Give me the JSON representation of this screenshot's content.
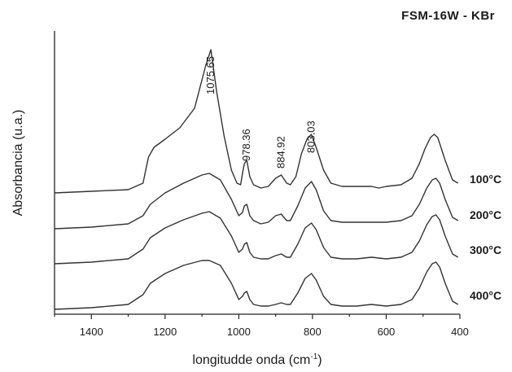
{
  "chart_data": {
    "type": "line",
    "title": "FSM-16W - KBr",
    "xlabel": "longitudde onda (cm",
    "xlabel_sup": "-1",
    "xlabel_close": ")",
    "ylabel": "Absorbancia (u.a.)",
    "xlim": [
      1500,
      400
    ],
    "x_reversed": true,
    "x_ticks": [
      1400,
      1200,
      1000,
      800,
      600,
      400
    ],
    "y_ticks": [],
    "stacked_offsets": true,
    "peak_labels": [
      "1075.65",
      "978.36",
      "884.92",
      "803.03"
    ],
    "peak_positions": [
      1075.65,
      978.36,
      884.92,
      803.03
    ],
    "series": [
      {
        "name": "100°C",
        "x": [
          1500,
          1400,
          1300,
          1260,
          1245,
          1230,
          1200,
          1160,
          1120,
          1090,
          1075.65,
          1060,
          1040,
          1020,
          1005,
          995,
          990,
          985,
          978.36,
          970,
          960,
          940,
          920,
          900,
          884.92,
          870,
          860,
          845,
          830,
          815,
          803.03,
          790,
          770,
          750,
          720,
          680,
          640,
          620,
          600,
          560,
          530,
          510,
          495,
          480,
          470,
          460,
          440,
          420,
          405
        ],
        "y": [
          0.0,
          0.01,
          0.02,
          0.06,
          0.22,
          0.28,
          0.33,
          0.4,
          0.52,
          0.78,
          0.88,
          0.62,
          0.35,
          0.14,
          0.06,
          0.05,
          0.12,
          0.18,
          0.2,
          0.1,
          0.05,
          0.03,
          0.04,
          0.09,
          0.11,
          0.06,
          0.05,
          0.1,
          0.24,
          0.33,
          0.36,
          0.28,
          0.14,
          0.06,
          0.04,
          0.04,
          0.04,
          0.03,
          0.04,
          0.05,
          0.09,
          0.18,
          0.27,
          0.34,
          0.36,
          0.34,
          0.2,
          0.08,
          0.06
        ]
      },
      {
        "name": "200°C",
        "x": [
          1500,
          1400,
          1300,
          1260,
          1240,
          1200,
          1150,
          1100,
          1080,
          1050,
          1020,
          1000,
          990,
          985,
          978.36,
          970,
          960,
          940,
          920,
          900,
          885,
          870,
          860,
          840,
          820,
          803,
          790,
          770,
          750,
          720,
          680,
          640,
          600,
          560,
          530,
          510,
          490,
          475,
          465,
          455,
          440,
          420,
          405
        ],
        "y": [
          0.0,
          0.01,
          0.03,
          0.08,
          0.15,
          0.22,
          0.28,
          0.33,
          0.34,
          0.3,
          0.18,
          0.08,
          0.1,
          0.14,
          0.15,
          0.08,
          0.05,
          0.03,
          0.04,
          0.08,
          0.09,
          0.05,
          0.05,
          0.14,
          0.25,
          0.29,
          0.24,
          0.11,
          0.05,
          0.04,
          0.04,
          0.04,
          0.04,
          0.05,
          0.08,
          0.15,
          0.25,
          0.3,
          0.31,
          0.28,
          0.18,
          0.07,
          0.05
        ]
      },
      {
        "name": "300°C",
        "x": [
          1500,
          1400,
          1300,
          1260,
          1240,
          1200,
          1150,
          1100,
          1080,
          1050,
          1020,
          1000,
          990,
          985,
          978.36,
          970,
          960,
          940,
          920,
          900,
          885,
          870,
          860,
          840,
          820,
          803,
          790,
          770,
          750,
          720,
          680,
          640,
          600,
          560,
          530,
          510,
          490,
          475,
          465,
          455,
          440,
          420,
          405
        ],
        "y": [
          0.0,
          0.01,
          0.03,
          0.09,
          0.16,
          0.22,
          0.27,
          0.31,
          0.32,
          0.28,
          0.17,
          0.07,
          0.09,
          0.12,
          0.13,
          0.07,
          0.04,
          0.03,
          0.03,
          0.05,
          0.06,
          0.04,
          0.04,
          0.12,
          0.22,
          0.25,
          0.21,
          0.1,
          0.04,
          0.03,
          0.03,
          0.04,
          0.03,
          0.04,
          0.07,
          0.14,
          0.24,
          0.29,
          0.3,
          0.27,
          0.17,
          0.06,
          0.04
        ]
      },
      {
        "name": "400°C",
        "x": [
          1500,
          1400,
          1300,
          1260,
          1240,
          1200,
          1150,
          1100,
          1080,
          1050,
          1020,
          1000,
          990,
          985,
          978.36,
          970,
          960,
          940,
          920,
          900,
          885,
          870,
          860,
          840,
          820,
          803,
          790,
          770,
          750,
          720,
          680,
          640,
          600,
          560,
          530,
          510,
          490,
          475,
          465,
          455,
          440,
          420,
          405
        ],
        "y": [
          0.0,
          0.01,
          0.03,
          0.09,
          0.16,
          0.22,
          0.27,
          0.3,
          0.3,
          0.27,
          0.16,
          0.06,
          0.08,
          0.1,
          0.11,
          0.06,
          0.03,
          0.02,
          0.02,
          0.03,
          0.04,
          0.03,
          0.03,
          0.1,
          0.19,
          0.22,
          0.18,
          0.08,
          0.03,
          0.02,
          0.02,
          0.03,
          0.02,
          0.03,
          0.06,
          0.13,
          0.23,
          0.28,
          0.29,
          0.26,
          0.16,
          0.05,
          0.03
        ]
      }
    ]
  }
}
